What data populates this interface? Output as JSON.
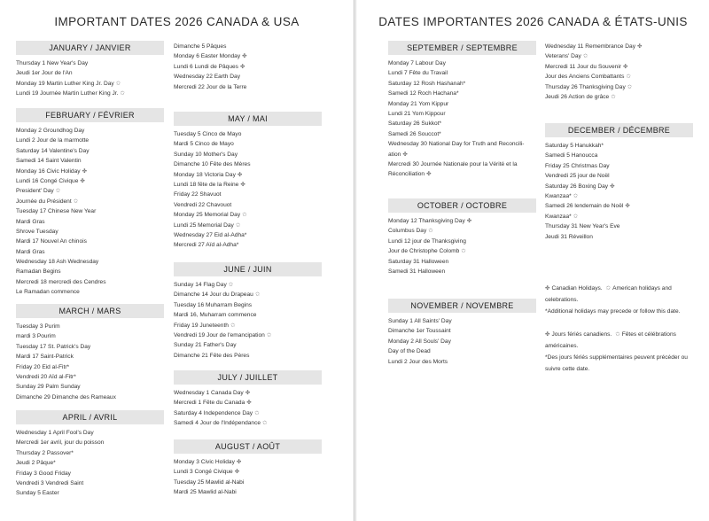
{
  "left_page": {
    "title": "IMPORTANT DATES 2026 CANADA & USA",
    "columns": [
      [
        {
          "header": "JANUARY / JANVIER",
          "items": [
            {
              "text": "Thursday 1 New Year's Day"
            },
            {
              "text": "Jeudi 1er Jour de l'An"
            },
            {
              "text": "Monday 19 Martin Luther King Jr. Day",
              "mark": "us"
            },
            {
              "text": "Lundi 19 Journée Martin Luther King Jr.",
              "mark": "us"
            }
          ]
        },
        {
          "header": "FEBRUARY / FÉVRIER",
          "items": [
            {
              "text": "Monday 2 Groundhog Day"
            },
            {
              "text": "Lundi 2 Jour de la marmotte"
            },
            {
              "text": "Saturday 14 Valentine's Day"
            },
            {
              "text": "Samedi 14 Saint Valentin"
            },
            {
              "text": "Monday 16 Civic Holiday",
              "mark": "ca"
            },
            {
              "text": "Lundi 16 Congé Civique",
              "mark": "ca"
            },
            {
              "text": "President' Day",
              "mark": "us"
            },
            {
              "text": "Journée du Président",
              "mark": "us"
            },
            {
              "text": "Tuesday 17 Chinese New Year"
            },
            {
              "text": "Mardi Gras"
            },
            {
              "text": "Shrove Tuesday"
            },
            {
              "text": "Mardi 17 Nouvel An chinois"
            },
            {
              "text": "Mardi Gras"
            },
            {
              "text": "Wednesday 18 Ash Wednesday"
            },
            {
              "text": "Ramadan Begins"
            },
            {
              "text": "Mercredi 18 mercredi des Cendres"
            },
            {
              "text": "Le Ramadan commence"
            }
          ]
        },
        {
          "header": "MARCH / MARS",
          "items": [
            {
              "text": "Tuesday 3 Purim"
            },
            {
              "text": "mardi 3 Pourim"
            },
            {
              "text": "Tuesday 17 St. Patrick's Day"
            },
            {
              "text": "Mardi 17 Saint-Patrick"
            },
            {
              "text": "Friday 20 Eid al-Fitr*"
            },
            {
              "text": "Vendredi 20 Aïd al-Fitr*"
            },
            {
              "text": "Sunday 29 Palm Sunday"
            },
            {
              "text": "Dimanche 29 Dimanche des Rameaux"
            }
          ]
        },
        {
          "header": "APRIL / AVRIL",
          "items": [
            {
              "text": "Wednesday 1 April Fool's Day"
            },
            {
              "text": "Mercredi 1er avril, jour du poisson"
            },
            {
              "text": "Thursday 2 Passover*"
            },
            {
              "text": "Jeudi 2 Pâque*"
            },
            {
              "text": "Friday 3 Good Friday"
            },
            {
              "text": "Vendredi 3 Vendredi Saint"
            },
            {
              "text": "Sunday 5 Easter"
            }
          ]
        }
      ],
      [
        {
          "header": "",
          "items": [
            {
              "text": "Dimanche 5 Pâques"
            },
            {
              "text": "Monday 6 Easter Monday",
              "mark": "ca"
            },
            {
              "text": "Lundi 6 Lundi de Pâques",
              "mark": "ca"
            },
            {
              "text": "Wednesday 22 Earth Day"
            },
            {
              "text": "Mercredi 22 Jour de la Terre"
            }
          ]
        },
        {
          "header": "MAY / MAI",
          "items": [
            {
              "text": "Tuesday 5 Cinco de Mayo"
            },
            {
              "text": "Mardi 5 Cinco de Mayo"
            },
            {
              "text": "Sunday 10 Mother's Day"
            },
            {
              "text": "Dimanche 10 Fête des Mères"
            },
            {
              "text": "Monday 18 Victoria Day",
              "mark": "ca"
            },
            {
              "text": "Lundi 18 fête de la Reine",
              "mark": "ca"
            },
            {
              "text": "Friday 22 Shavuot"
            },
            {
              "text": "Vendredi 22 Chavouot"
            },
            {
              "text": "Monday 25 Memorial Day",
              "mark": "us"
            },
            {
              "text": "Lundi 25 Memorial Day",
              "mark": "us"
            },
            {
              "text": "Wednesday 27 Eid al-Adha*"
            },
            {
              "text": "Mercredi 27 Aïd al-Adha*"
            }
          ]
        },
        {
          "header": "JUNE / JUIN",
          "items": [
            {
              "text": "Sunday 14 Flag Day",
              "mark": "us"
            },
            {
              "text": "Dimanche 14 Jour du Drapeau",
              "mark": "us"
            },
            {
              "text": "Tuesday 16 Muharram Begins"
            },
            {
              "text": "Mardi 16, Muharram commence"
            },
            {
              "text": "Friday 19 Juneteenth",
              "mark": "us"
            },
            {
              "text": "Vendredi 19 Jour de l'emancipation",
              "mark": "us"
            },
            {
              "text": "Sunday 21 Father's Day"
            },
            {
              "text": "Dimanche 21 Fête des Pères"
            }
          ]
        },
        {
          "header": "JULY / JUILLET",
          "items": [
            {
              "text": "Wednesday 1 Canada Day",
              "mark": "ca"
            },
            {
              "text": "Mercredi 1 Fête du Canada",
              "mark": "ca"
            },
            {
              "text": "Saturday 4 Independence Day",
              "mark": "us"
            },
            {
              "text": "Samedi 4 Jour de l'Indépendance",
              "mark": "us"
            }
          ]
        },
        {
          "header": "AUGUST / AOÛT",
          "items": [
            {
              "text": "Monday 3 Civic Holiday",
              "mark": "ca"
            },
            {
              "text": "Lundi 3 Congé Civique",
              "mark": "ca"
            },
            {
              "text": "Tuesday 25 Mawlid al-Nabi"
            },
            {
              "text": "Mardi 25 Mawlid al-Nabi"
            }
          ]
        }
      ]
    ]
  },
  "right_page": {
    "title": "DATES IMPORTANTES 2026 CANADA & ÉTATS-UNIS",
    "columns": [
      [
        {
          "header": "SEPTEMBER / SEPTEMBRE",
          "items": [
            {
              "text": "Monday 7 Labour Day"
            },
            {
              "text": "Lundi 7 Fête du Travail"
            },
            {
              "text": "Saturday 12 Rosh Hashanah*"
            },
            {
              "text": "Samedi 12 Roch Hachana*"
            },
            {
              "text": "Monday 21 Yom Kippur"
            },
            {
              "text": "Lundi 21 Yom Kippour"
            },
            {
              "text": "Saturday 26 Sukkot*"
            },
            {
              "text": "Samedi 26 Souccot*"
            },
            {
              "text": "Wednesday 30 National Day for Truth and Reconcili-"
            },
            {
              "text": "ation",
              "mark": "ca"
            },
            {
              "text": "Mercredi 30 Journée Nationale pour la Vérité et la"
            },
            {
              "text": "Réconciliation",
              "mark": "ca"
            }
          ]
        },
        {
          "header": "OCTOBER / OCTOBRE",
          "items": [
            {
              "text": "Monday 12 Thanksgiving Day",
              "mark": "ca"
            },
            {
              "text": "Columbus Day",
              "mark": "us"
            },
            {
              "text": "Lundi 12 jour de Thanksgiving"
            },
            {
              "text": "Jour de Christophe Colomb",
              "mark": "us"
            },
            {
              "text": "Saturday 31 Halloween"
            },
            {
              "text": "Samedi 31 Halloween"
            }
          ]
        },
        {
          "header": "NOVEMBER / NOVEMBRE",
          "items": [
            {
              "text": "Sunday 1 All Saints' Day"
            },
            {
              "text": "Dimanche 1er Toussaint"
            },
            {
              "text": "Monday 2 All Souls' Day"
            },
            {
              "text": "Day of the Dead"
            },
            {
              "text": "Lundi 2 Jour des Morts"
            }
          ]
        }
      ],
      [
        {
          "header": "",
          "items": [
            {
              "text": "Wednesday 11 Remembrance Day",
              "mark": "ca"
            },
            {
              "text": "Veterans' Day",
              "mark": "us"
            },
            {
              "text": "Mercredi 11 Jour du Souvenir",
              "mark": "ca"
            },
            {
              "text": "Jour des Anciens Combattants",
              "mark": "us"
            },
            {
              "text": "Thursday 26 Thanksgiving Day",
              "mark": "us"
            },
            {
              "text": "Jeudi 26 Action de grâce",
              "mark": "us"
            }
          ]
        },
        {
          "header": "DECEMBER / DÉCEMBRE",
          "items": [
            {
              "text": "Saturday 5 Hanukkah*"
            },
            {
              "text": "Samedi 5 Hanoucca"
            },
            {
              "text": "Friday 25 Christmas Day"
            },
            {
              "text": "Vendredi 25 jour de Noël"
            },
            {
              "text": "Saturday 26 Boxing Day",
              "mark": "ca"
            },
            {
              "text": "Kwanzaa*",
              "mark": "us"
            },
            {
              "text": "Samedi 26 lendemain de Noël",
              "mark": "ca"
            },
            {
              "text": "Kwanzaa*",
              "mark": "us"
            },
            {
              "text": "Thursday 31 New Year's Eve"
            },
            {
              "text": "Jeudi 31 Réveillon"
            }
          ]
        }
      ]
    ],
    "legend": {
      "en": [
        {
          "lead": "ca",
          "text": "Canadian Holidays.",
          "mid": "us",
          "text2": "American holidays and"
        },
        {
          "text": "celebrations."
        },
        {
          "text": "*Additional holidays may precede or follow this date."
        }
      ],
      "fr": [
        {
          "lead": "ca",
          "text": "Jours fériés canadiens.",
          "mid": "us",
          "text2": "Fêtes et célébrations"
        },
        {
          "text": "américaines."
        },
        {
          "text": "*Des jours fériés supplémentaires peuvent précéder ou"
        },
        {
          "text": "suivre cette date."
        }
      ]
    }
  },
  "icons": {
    "ca": "maple-leaf-icon",
    "us": "star-icon"
  },
  "colors": {
    "header_bg": "#e5e5e5",
    "text": "#333333"
  }
}
